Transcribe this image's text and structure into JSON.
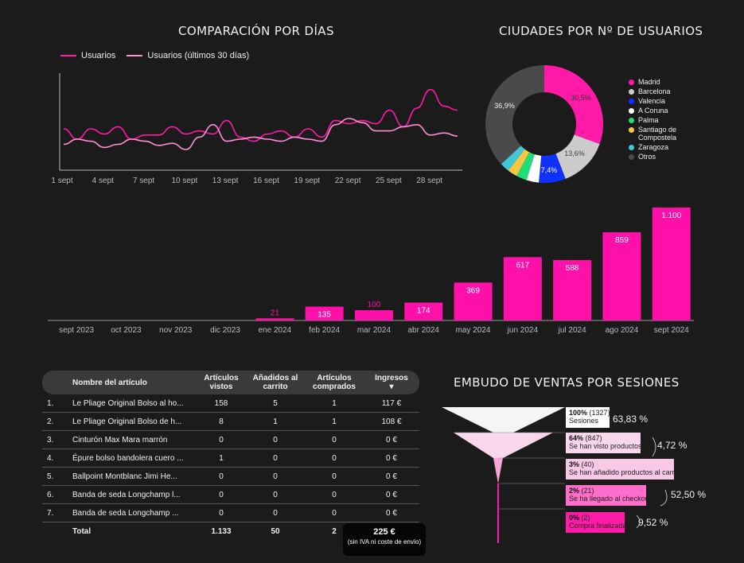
{
  "line_chart": {
    "title": "COMPARACIÓN POR DÍAS",
    "legend": [
      "Usuarios",
      "Usuarios (últimos 30 días)"
    ],
    "colors": [
      "#ff1aa8",
      "#ff8fd4"
    ]
  },
  "pie_chart": {
    "title": "CIUDADES POR Nº DE USUARIOS",
    "slice_labels": [
      "30,5%",
      "13,6%",
      "7,4%",
      "36,9%"
    ],
    "legend": [
      {
        "label": "Madrid",
        "color": "#ff1aa8"
      },
      {
        "label": "Barcelona",
        "color": "#cccccc"
      },
      {
        "label": "Valencia",
        "color": "#1030ff"
      },
      {
        "label": "A Coruna",
        "color": "#ffffff"
      },
      {
        "label": "Palma",
        "color": "#22dd77"
      },
      {
        "label": "Santiago de Compostela",
        "color": "#f5c842"
      },
      {
        "label": "Zaragoza",
        "color": "#40c8d8"
      },
      {
        "label": "Otros",
        "color": "#4a4a4a"
      }
    ]
  },
  "table": {
    "headers": [
      "Nombre del artículo",
      "Artículos vistos",
      "Añadidos al carrito",
      "Artículos comprados",
      "Ingresos"
    ],
    "sort_indicator": "▾",
    "rows": [
      [
        "1.",
        "Le Pliage Original Bolso al ho...",
        "158",
        "5",
        "1",
        "117 €"
      ],
      [
        "2.",
        "Le Pliage Original Bolso de h...",
        "8",
        "1",
        "1",
        "108 €"
      ],
      [
        "3.",
        "Cinturón Max Mara marrón",
        "0",
        "0",
        "0",
        "0 €"
      ],
      [
        "4.",
        "Épure bolso bandolera cuero ...",
        "1",
        "0",
        "0",
        "0 €"
      ],
      [
        "5.",
        "Ballpoint Montblanc Jimi He...",
        "0",
        "0",
        "0",
        "0 €"
      ],
      [
        "6.",
        "Banda de seda Longchamp l...",
        "0",
        "0",
        "0",
        "0 €"
      ],
      [
        "7.",
        "Banda de seda Longchamp ...",
        "0",
        "0",
        "0",
        "0 €"
      ]
    ],
    "total": {
      "label": "Total",
      "vistos": "1.133",
      "carrito": "50",
      "comprados": "2"
    },
    "total_revenue": "225 €",
    "total_note": "(sin IVA ni coste de envío)"
  },
  "funnel": {
    "title": "EMBUDO DE VENTAS POR SESIONES",
    "stages": [
      {
        "pct": "100%",
        "count": "(1327)",
        "label": "Sesiones",
        "conv": "63,83 %"
      },
      {
        "pct": "64%",
        "count": "(847)",
        "label": "Se han visto productos",
        "conv": "4,72 %"
      },
      {
        "pct": "3%",
        "count": "(40)",
        "label": "Se han añadido productos al carrito",
        "conv": "52,50 %"
      },
      {
        "pct": "2%",
        "count": "(21)",
        "label": "Se ha llegado al checkout",
        "conv": "9,52 %"
      },
      {
        "pct": "0%",
        "count": "(2)",
        "label": "Compra finalizada",
        "conv": ""
      }
    ]
  },
  "chart_data": [
    {
      "type": "line",
      "title": "COMPARACIÓN POR DÍAS",
      "x_ticks": [
        "1 sept",
        "4 sept",
        "7 sept",
        "10 sept",
        "13 sept",
        "16 sept",
        "19 sept",
        "22 sept",
        "25 sept",
        "28 sept"
      ],
      "ylim": [
        0,
        100
      ],
      "series": [
        {
          "name": "Usuarios",
          "color": "#ff1aa8",
          "values": [
            40,
            30,
            40,
            35,
            42,
            30,
            34,
            34,
            42,
            35,
            38,
            35,
            48,
            32,
            28,
            35,
            38,
            32,
            40,
            32,
            48,
            45,
            48,
            45,
            58,
            42,
            60,
            78,
            62,
            58
          ]
        },
        {
          "name": "Usuarios (últimos 30 días)",
          "color": "#ff8fd4",
          "values": [
            25,
            30,
            28,
            22,
            25,
            30,
            28,
            24,
            26,
            20,
            32,
            44,
            28,
            30,
            32,
            30,
            28,
            32,
            30,
            28,
            44,
            50,
            46,
            38,
            38,
            42,
            44,
            34,
            36,
            33
          ]
        }
      ]
    },
    {
      "type": "pie",
      "title": "CIUDADES POR Nº DE USUARIOS",
      "slices": [
        {
          "label": "Madrid",
          "value": 30.5
        },
        {
          "label": "Barcelona",
          "value": 13.6
        },
        {
          "label": "Valencia",
          "value": 7.4
        },
        {
          "label": "A Coruna",
          "value": 3.4
        },
        {
          "label": "Palma",
          "value": 2.9
        },
        {
          "label": "Santiago de Compostela",
          "value": 2.7
        },
        {
          "label": "Zaragoza",
          "value": 2.6
        },
        {
          "label": "Otros",
          "value": 36.9
        }
      ]
    },
    {
      "type": "bar",
      "categories": [
        "sept 2023",
        "oct 2023",
        "nov 2023",
        "dic 2023",
        "ene 2024",
        "feb 2024",
        "mar 2024",
        "abr 2024",
        "may 2024",
        "jun 2024",
        "jul 2024",
        "ago 2024",
        "sept 2024"
      ],
      "values": [
        0,
        0,
        0,
        0,
        21,
        135,
        100,
        174,
        369,
        617,
        588,
        859,
        1100
      ],
      "data_labels": [
        "",
        "",
        "",
        "",
        "21",
        "135",
        "100",
        "174",
        "369",
        "617",
        "588",
        "859",
        "1.100"
      ],
      "color": "#ff10a8",
      "ylim": [
        0,
        1100
      ]
    }
  ]
}
